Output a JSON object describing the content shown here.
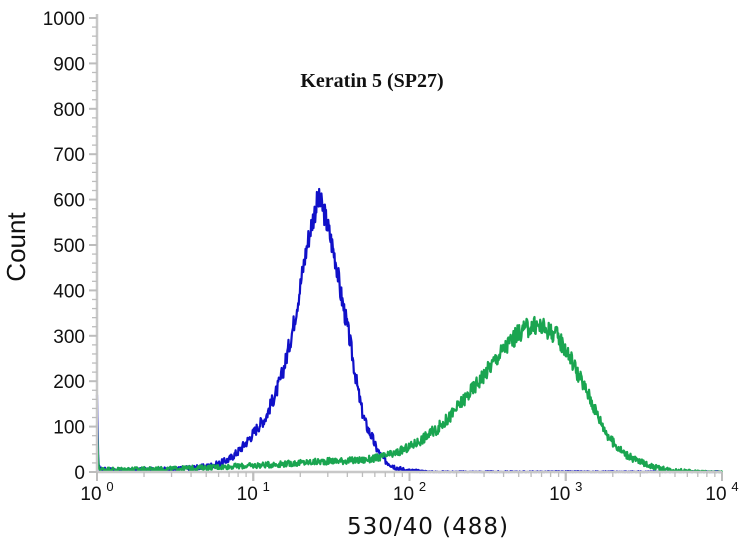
{
  "chart_data": {
    "type": "line",
    "title": "Keratin 5 (SP27)",
    "xlabel": "530/40 (488)",
    "ylabel": "Count",
    "x_scale": "log",
    "xlim": [
      1,
      10000
    ],
    "ylim": [
      0,
      1000
    ],
    "x_tick_labels": [
      {
        "base": "10",
        "exp": "0"
      },
      {
        "base": "10",
        "exp": "1"
      },
      {
        "base": "10",
        "exp": "2"
      },
      {
        "base": "10",
        "exp": "3"
      },
      {
        "base": "10",
        "exp": "4"
      }
    ],
    "y_ticks": [
      "0",
      "100",
      "200",
      "300",
      "400",
      "500",
      "600",
      "700",
      "800",
      "900",
      "1000"
    ],
    "grid": false,
    "legend": "none",
    "series": [
      {
        "color": "#1010c8",
        "x": [
          1,
          1.02,
          1.05,
          1.2,
          1.5,
          2,
          3,
          4,
          5,
          6,
          7,
          8,
          9,
          10,
          11,
          12,
          13,
          14,
          15,
          16,
          17,
          18,
          19,
          20,
          21,
          22,
          23,
          24,
          25,
          26,
          27,
          28,
          29,
          30,
          31,
          32,
          33,
          34,
          35,
          36,
          38,
          40,
          42,
          44,
          46,
          48,
          50,
          52,
          55,
          58,
          60,
          63,
          66,
          70,
          75,
          80,
          85,
          90,
          95,
          100,
          110,
          120,
          140,
          170,
          200,
          300,
          500,
          1000,
          3000,
          10000
        ],
        "y": [
          170,
          12,
          6,
          5,
          4,
          5,
          6,
          9,
          12,
          18,
          28,
          45,
          65,
          85,
          105,
          120,
          150,
          175,
          205,
          240,
          280,
          320,
          365,
          410,
          455,
          495,
          530,
          555,
          580,
          600,
          590,
          580,
          560,
          540,
          520,
          500,
          480,
          460,
          430,
          400,
          360,
          320,
          280,
          235,
          195,
          160,
          130,
          110,
          90,
          75,
          60,
          45,
          35,
          25,
          18,
          12,
          8,
          6,
          4,
          3,
          2,
          1,
          0,
          0,
          0,
          0,
          0,
          0,
          0,
          0
        ]
      },
      {
        "color": "#1aa550",
        "x": [
          1,
          1.02,
          1.05,
          1.5,
          3,
          5,
          10,
          20,
          30,
          40,
          50,
          60,
          80,
          100,
          120,
          150,
          180,
          200,
          250,
          300,
          350,
          400,
          450,
          500,
          550,
          600,
          650,
          700,
          750,
          800,
          850,
          900,
          1000,
          1100,
          1200,
          1400,
          1600,
          1800,
          2000,
          2300,
          2600,
          3000,
          3500,
          4000,
          5000,
          6000,
          7000,
          8000,
          10000
        ],
        "y": [
          105,
          10,
          6,
          6,
          7,
          10,
          14,
          20,
          24,
          25,
          26,
          30,
          40,
          55,
          72,
          95,
          120,
          140,
          180,
          215,
          245,
          270,
          290,
          305,
          315,
          320,
          322,
          320,
          315,
          310,
          305,
          295,
          270,
          245,
          215,
          170,
          125,
          90,
          65,
          45,
          32,
          22,
          14,
          8,
          4,
          2,
          1,
          0,
          0
        ]
      }
    ]
  }
}
